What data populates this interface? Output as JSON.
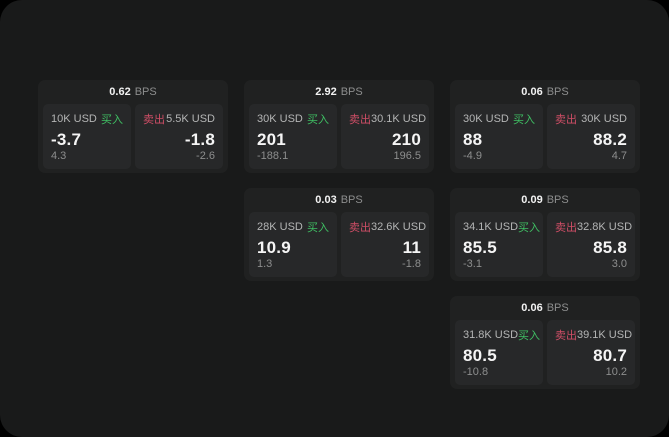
{
  "labels": {
    "buy": "买入",
    "sell": "卖出",
    "bps_unit": "BPS"
  },
  "colors": {
    "buy_green": "#3fbf63",
    "sell_red": "#cf4e66",
    "window_bg": "#191a1a",
    "card_bg": "#202121",
    "tile_bg": "#272829"
  },
  "cards": [
    {
      "bps": "0.62",
      "buy": {
        "amount": "10K USD",
        "value": "-3.7",
        "delta": "4.3"
      },
      "sell": {
        "amount": "5.5K USD",
        "value": "-1.8",
        "delta": "-2.6"
      }
    },
    {
      "bps": "2.92",
      "buy": {
        "amount": "30K USD",
        "value": "201",
        "delta": "-188.1"
      },
      "sell": {
        "amount": "30.1K USD",
        "value": "210",
        "delta": "196.5"
      }
    },
    {
      "bps": "0.06",
      "buy": {
        "amount": "30K USD",
        "value": "88",
        "delta": "-4.9"
      },
      "sell": {
        "amount": "30K USD",
        "value": "88.2",
        "delta": "4.7"
      }
    },
    {
      "bps": "0.03",
      "buy": {
        "amount": "28K USD",
        "value": "10.9",
        "delta": "1.3"
      },
      "sell": {
        "amount": "32.6K USD",
        "value": "11",
        "delta": "-1.8"
      }
    },
    {
      "bps": "0.09",
      "buy": {
        "amount": "34.1K USD",
        "value": "85.5",
        "delta": "-3.1"
      },
      "sell": {
        "amount": "32.8K USD",
        "value": "85.8",
        "delta": "3.0"
      }
    },
    {
      "bps": "0.06",
      "buy": {
        "amount": "31.8K USD",
        "value": "80.5",
        "delta": "-10.8"
      },
      "sell": {
        "amount": "39.1K USD",
        "value": "80.7",
        "delta": "10.2"
      }
    }
  ]
}
